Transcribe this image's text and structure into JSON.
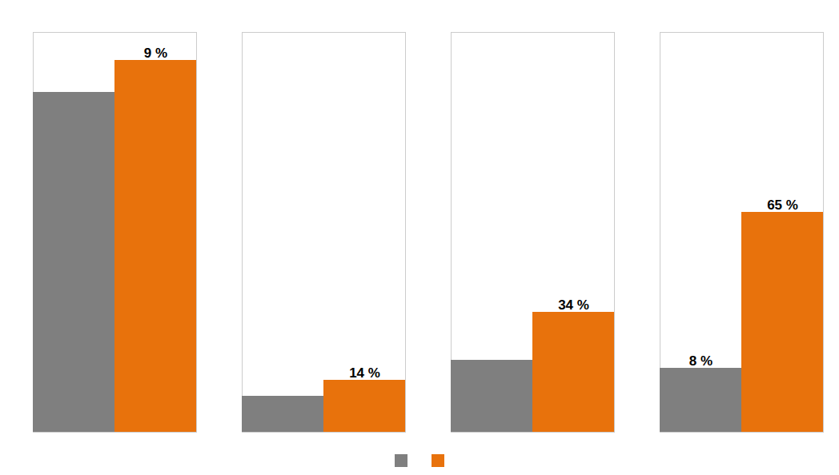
{
  "chart_data": {
    "type": "bar",
    "categories": [
      null,
      null,
      null,
      null
    ],
    "series": [
      {
        "color": "#7F7F7F",
        "values": [
          85,
          9,
          18,
          16
        ]
      },
      {
        "color": "#E8720C",
        "values": [
          93,
          13,
          30,
          55
        ]
      }
    ],
    "annotations": [
      {
        "text": "9 %",
        "series": 1,
        "group": 0
      },
      {
        "text": "14 %",
        "series": 1,
        "group": 1
      },
      {
        "text": "34 %",
        "series": 1,
        "group": 2
      },
      {
        "text": "8 %",
        "series": 0,
        "group": 3
      },
      {
        "text": "65 %",
        "series": 1,
        "group": 3
      }
    ],
    "ylim": [
      0,
      100
    ],
    "yticks": [],
    "grid": false,
    "tick_labels": false,
    "legend": "bottom"
  }
}
